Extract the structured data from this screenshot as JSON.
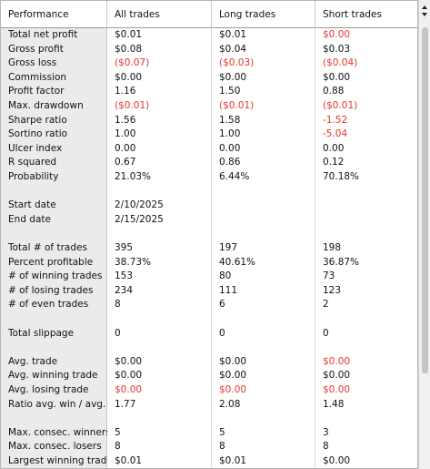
{
  "header": [
    "Performance",
    "All trades",
    "Long trades",
    "Short trades"
  ],
  "negative_color": "#e8332a",
  "sections": [
    [
      {
        "label": "Total net profit",
        "cells": [
          "$0.01",
          "$0.01",
          {
            "text": "$0.00",
            "negative": true
          }
        ]
      },
      {
        "label": "Gross profit",
        "cells": [
          "$0.08",
          "$0.04",
          "$0.03"
        ]
      },
      {
        "label": "Gross loss",
        "cells": [
          {
            "text": "($0.07)",
            "negative": true
          },
          {
            "text": "($0.03)",
            "negative": true
          },
          {
            "text": "($0.04)",
            "negative": true
          }
        ]
      },
      {
        "label": "Commission",
        "cells": [
          "$0.00",
          "$0.00",
          "$0.00"
        ]
      },
      {
        "label": "Profit factor",
        "cells": [
          "1.16",
          "1.50",
          "0.88"
        ]
      },
      {
        "label": "Max. drawdown",
        "cells": [
          {
            "text": "($0.01)",
            "negative": true
          },
          {
            "text": "($0.01)",
            "negative": true
          },
          {
            "text": "($0.01)",
            "negative": true
          }
        ]
      },
      {
        "label": "Sharpe ratio",
        "cells": [
          "1.56",
          "1.58",
          {
            "text": "-1.52",
            "negative": true
          }
        ]
      },
      {
        "label": "Sortino ratio",
        "cells": [
          "1.00",
          "1.00",
          {
            "text": "-5.04",
            "negative": true
          }
        ]
      },
      {
        "label": "Ulcer index",
        "cells": [
          "0.00",
          "0.00",
          "0.00"
        ]
      },
      {
        "label": "R squared",
        "cells": [
          "0.67",
          "0.86",
          "0.12"
        ]
      },
      {
        "label": "Probability",
        "cells": [
          "21.03%",
          "6.44%",
          "70.18%"
        ]
      }
    ],
    [
      {
        "label": "Start date",
        "cells": [
          "2/10/2025"
        ]
      },
      {
        "label": "End date",
        "cells": [
          "2/15/2025"
        ]
      }
    ],
    [
      {
        "label": "Total # of trades",
        "cells": [
          "395",
          "197",
          "198"
        ]
      },
      {
        "label": "Percent profitable",
        "cells": [
          "38.73%",
          "40.61%",
          "36.87%"
        ]
      },
      {
        "label": "# of winning trades",
        "cells": [
          "153",
          "80",
          "73"
        ]
      },
      {
        "label": "# of losing trades",
        "cells": [
          "234",
          "111",
          "123"
        ]
      },
      {
        "label": "# of even trades",
        "cells": [
          "8",
          "6",
          "2"
        ]
      }
    ],
    [
      {
        "label": "Total slippage",
        "cells": [
          "0",
          "0",
          "0"
        ]
      }
    ],
    [
      {
        "label": "Avg. trade",
        "cells": [
          "$0.00",
          "$0.00",
          {
            "text": "$0.00",
            "negative": true
          }
        ]
      },
      {
        "label": "Avg. winning trade",
        "cells": [
          "$0.00",
          "$0.00",
          "$0.00"
        ]
      },
      {
        "label": "Avg. losing trade",
        "cells": [
          {
            "text": "$0.00",
            "negative": true
          },
          {
            "text": "$0.00",
            "negative": true
          },
          {
            "text": "$0.00",
            "negative": true
          }
        ]
      },
      {
        "label": "Ratio avg. win / avg. lo",
        "cells": [
          "1.77",
          "2.08",
          "1.48"
        ]
      }
    ],
    [
      {
        "label": "Max. consec. winners",
        "cells": [
          "5",
          "5",
          "3"
        ]
      },
      {
        "label": "Max. consec. losers",
        "cells": [
          "8",
          "8",
          "8"
        ]
      },
      {
        "label": "Largest winning trade",
        "cells": [
          "$0.01",
          "$0.01",
          "$0.00"
        ]
      }
    ]
  ]
}
